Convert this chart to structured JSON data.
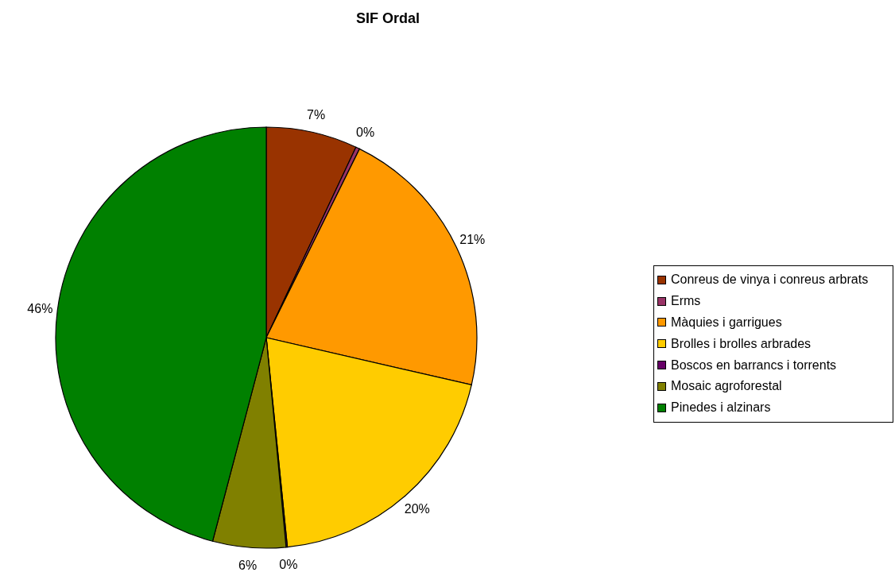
{
  "chart_data": {
    "type": "pie",
    "title": "SIF Ordal",
    "categories": [
      "Conreus de vinya i conreus arbrats",
      "Erms",
      "Màquies i garrigues",
      "Brolles i brolles arbrades",
      "Boscos en barrancs i torrents",
      "Mosaic agroforestal",
      "Pinedes i alzinars"
    ],
    "values": [
      7.0,
      0.3,
      21.3,
      19.8,
      0.1,
      5.6,
      45.9
    ],
    "value_labels": [
      "7%",
      "0%",
      "21%",
      "20%",
      "0%",
      "6%",
      "46%"
    ],
    "colors": [
      "#993300",
      "#993366",
      "#ff9900",
      "#ffcc00",
      "#660066",
      "#808000",
      "#008000"
    ],
    "legend": "right"
  }
}
